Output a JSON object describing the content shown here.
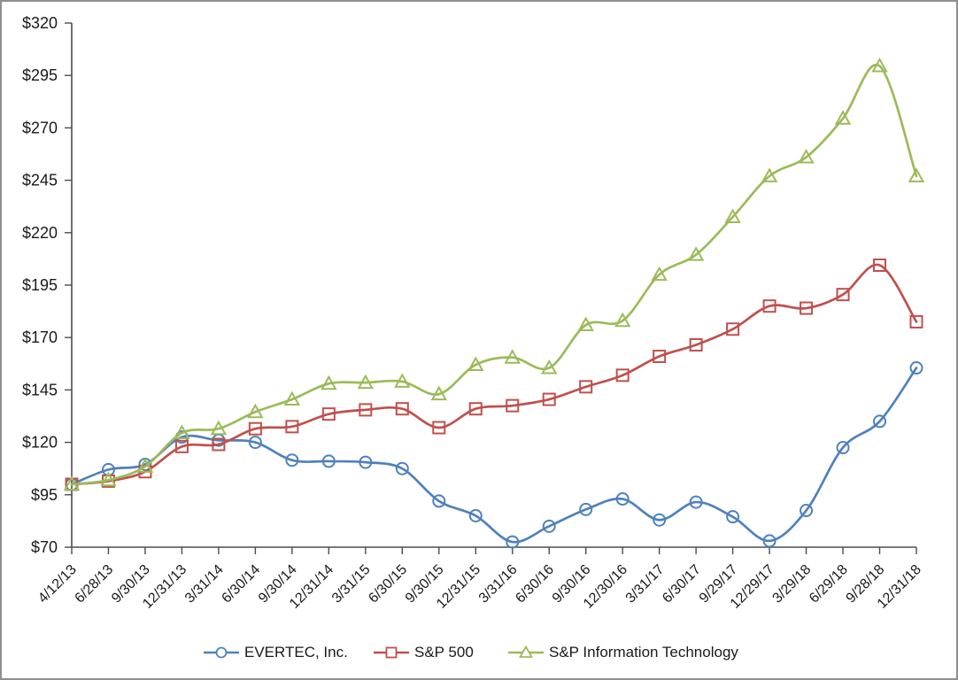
{
  "style": {
    "background": "#ffffff",
    "border_color": "#8f8f8f",
    "axis_color": "#4d4d4d",
    "text_color": "#1a1a1a"
  },
  "chart_data": {
    "type": "line",
    "smoothed": true,
    "title": "",
    "xlabel": "",
    "ylabel": "",
    "grid": false,
    "legend_position": "bottom",
    "ylim": [
      70,
      320
    ],
    "y_step": 25,
    "y_tick_labels": [
      "$320",
      "$295",
      "$270",
      "$245",
      "$220",
      "$195",
      "$170",
      "$145",
      "$120",
      "$95",
      "$70"
    ],
    "categories": [
      "4/12/13",
      "6/28/13",
      "9/30/13",
      "12/31/13",
      "3/31/14",
      "6/30/14",
      "9/30/14",
      "12/31/14",
      "3/31/15",
      "6/30/15",
      "9/30/15",
      "12/31/15",
      "3/31/16",
      "6/30/16",
      "9/30/16",
      "12/30/16",
      "3/31/17",
      "6/30/17",
      "9/29/17",
      "12/29/17",
      "3/29/18",
      "6/29/18",
      "9/28/18",
      "12/31/18"
    ],
    "series": [
      {
        "name": "EVERTEC, Inc.",
        "marker": "circle",
        "color": "#4F81BD",
        "values": [
          100,
          107,
          109.5,
          122.5,
          121,
          120,
          111.5,
          111,
          110.5,
          107.5,
          92,
          85,
          72.5,
          80,
          88,
          93,
          83,
          91.5,
          84.5,
          73,
          87.5,
          117.5,
          130,
          155.5
        ]
      },
      {
        "name": "S&P 500",
        "marker": "square",
        "color": "#C0504D",
        "values": [
          100,
          101.5,
          106,
          118,
          119,
          126.5,
          127.5,
          133.5,
          135.5,
          136,
          127,
          136,
          137.5,
          140.5,
          146.5,
          152,
          161,
          166.5,
          174,
          185,
          184,
          190.5,
          204.5,
          177.5
        ]
      },
      {
        "name": "S&P Information Technology",
        "marker": "triangle",
        "color": "#9BBB59",
        "values": [
          100,
          102,
          108.5,
          124.5,
          126.5,
          134.5,
          140.5,
          148,
          148.5,
          149,
          143,
          157,
          160.5,
          155.5,
          176,
          178,
          200,
          209.5,
          227.5,
          247,
          256,
          274.5,
          299.5,
          247
        ]
      }
    ]
  }
}
